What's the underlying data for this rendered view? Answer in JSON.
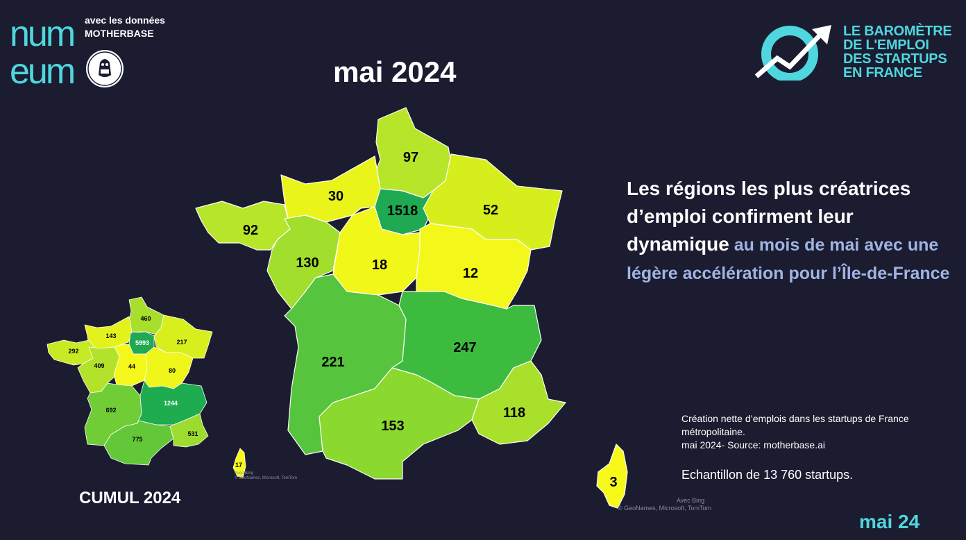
{
  "header": {
    "logo_line1": "num",
    "logo_line2": "eum",
    "data_credit_line1": "avec les données",
    "data_credit_line2": "MOTHERBASE",
    "barometre_lines": [
      "LE BAROMÈTRE",
      "DE L'EMPLOI",
      "DES STARTUPS",
      "EN FRANCE"
    ]
  },
  "main": {
    "title": "mai 2024",
    "headline_white": "Les régions les plus créatrices d’emploi confirment leur dynamique",
    "headline_blue": " au mois de mai avec une légère accélération pour l’Île-de-France"
  },
  "caption": {
    "line1": "Création nette d’emplois dans les startups de France métropolitaine.",
    "line2": "mai 2024- Source: motherbase.ai",
    "sample": "Echantillon de 13 760 startups."
  },
  "map_main": {
    "attribution_line1": "Avec Bing",
    "attribution_line2": "© GeoNames, Microsoft, TomTom",
    "regions": [
      {
        "name": "Hauts-de-France",
        "value": "97",
        "color": "#b6e52a"
      },
      {
        "name": "Normandie",
        "value": "30",
        "color": "#eaf41a"
      },
      {
        "name": "Île-de-France",
        "value": "1518",
        "color": "#1ea952"
      },
      {
        "name": "Grand Est",
        "value": "52",
        "color": "#d6ef1c"
      },
      {
        "name": "Bretagne",
        "value": "92",
        "color": "#b6e52a"
      },
      {
        "name": "Pays de la Loire",
        "value": "130",
        "color": "#a2de2c"
      },
      {
        "name": "Centre-Val de Loire",
        "value": "18",
        "color": "#f2f71a"
      },
      {
        "name": "Bourgogne-Franche-Comté",
        "value": "12",
        "color": "#f4f81a"
      },
      {
        "name": "Nouvelle-Aquitaine",
        "value": "221",
        "color": "#56c43c"
      },
      {
        "name": "Auvergne-Rhône-Alpes",
        "value": "247",
        "color": "#3cbb3e"
      },
      {
        "name": "Occitanie",
        "value": "153",
        "color": "#8bd82f"
      },
      {
        "name": "Provence-Alpes-Côte d'Azur",
        "value": "118",
        "color": "#a9e02c"
      },
      {
        "name": "Corse",
        "value": "3",
        "color": "#f7f91a"
      }
    ]
  },
  "map_cumul": {
    "title": "CUMUL 2024",
    "attribution_line1": "Avec Bing",
    "attribution_line2": "© GeoNames, Microsoft, TomTom",
    "regions": [
      {
        "name": "Hauts-de-France",
        "value": "460",
        "color": "#a8df2c"
      },
      {
        "name": "Normandie",
        "value": "143",
        "color": "#e3f21c"
      },
      {
        "name": "Île-de-France",
        "value": "5993",
        "color": "#1ea952"
      },
      {
        "name": "Grand Est",
        "value": "217",
        "color": "#d8ef1e"
      },
      {
        "name": "Bretagne",
        "value": "292",
        "color": "#c6ea24"
      },
      {
        "name": "Pays de la Loire",
        "value": "409",
        "color": "#b2e22a"
      },
      {
        "name": "Centre-Val de Loire",
        "value": "44",
        "color": "#f3f81a"
      },
      {
        "name": "Bourgogne-Franche-Comté",
        "value": "80",
        "color": "#eef61a"
      },
      {
        "name": "Nouvelle-Aquitaine",
        "value": "692",
        "color": "#70cd36"
      },
      {
        "name": "Auvergne-Rhône-Alpes",
        "value": "1244",
        "color": "#1fab50"
      },
      {
        "name": "Occitanie",
        "value": "775",
        "color": "#62c83a"
      },
      {
        "name": "Provence-Alpes-Côte d'Azur",
        "value": "531",
        "color": "#9ddc2e"
      },
      {
        "name": "Corse",
        "value": "17",
        "color": "#f7f91a"
      }
    ]
  },
  "footer": {
    "date": "mai 24"
  }
}
